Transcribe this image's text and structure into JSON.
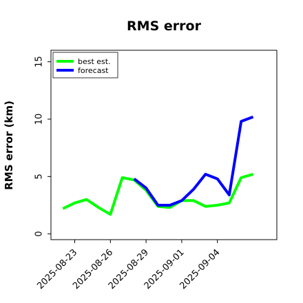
{
  "chart_data": {
    "type": "line",
    "title": "RMS error",
    "xlabel": "",
    "ylabel": "RMS error (km)",
    "ylim": [
      -0.5,
      16
    ],
    "yticks": [
      0,
      5,
      10,
      15
    ],
    "xrange": [
      "2025-08-21",
      "2025-09-09"
    ],
    "xticks": [
      "2025-08-23",
      "2025-08-26",
      "2025-08-29",
      "2025-09-01",
      "2025-09-04"
    ],
    "grid": false,
    "legend_position": "top-left",
    "series": [
      {
        "name": "best est.",
        "color": "#00ff00",
        "x": [
          "2025-08-22",
          "2025-08-23",
          "2025-08-24",
          "2025-08-25",
          "2025-08-26",
          "2025-08-27",
          "2025-08-28",
          "2025-08-29",
          "2025-08-30",
          "2025-08-31",
          "2025-09-01",
          "2025-09-02",
          "2025-09-03",
          "2025-09-04",
          "2025-09-05",
          "2025-09-06",
          "2025-09-07"
        ],
        "y": [
          2.2,
          2.7,
          3.0,
          2.3,
          1.7,
          4.9,
          4.7,
          3.8,
          2.4,
          2.3,
          2.9,
          2.9,
          2.4,
          2.5,
          2.7,
          4.9,
          5.2
        ]
      },
      {
        "name": "forecast",
        "color": "#0000ff",
        "x": [
          "2025-08-28",
          "2025-08-29",
          "2025-08-30",
          "2025-08-31",
          "2025-09-01",
          "2025-09-02",
          "2025-09-03",
          "2025-09-04",
          "2025-09-05",
          "2025-09-06",
          "2025-09-07"
        ],
        "y": [
          4.8,
          4.0,
          2.5,
          2.5,
          2.9,
          3.9,
          5.2,
          4.8,
          3.4,
          9.8,
          10.2
        ]
      }
    ]
  }
}
